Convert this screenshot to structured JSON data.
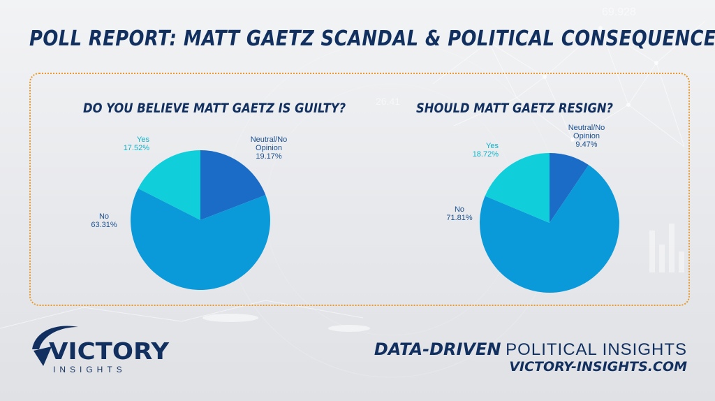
{
  "title": "POLL REPORT: MATT GAETZ SCANDAL & POLITICAL CONSEQUENCES",
  "chart_data": [
    {
      "type": "pie",
      "title": "DO YOU BELIEVE MATT GAETZ IS GUILTY?",
      "slices": [
        {
          "label": "Neutral/No Opinion",
          "label_lines": [
            "Neutral/No",
            "Opinion"
          ],
          "value": 19.17,
          "display": "19.17%",
          "color": "#1a6cc6"
        },
        {
          "label": "No",
          "label_lines": [
            "No"
          ],
          "value": 63.31,
          "display": "63.31%",
          "color": "#0b9ad9"
        },
        {
          "label": "Yes",
          "label_lines": [
            "Yes"
          ],
          "value": 17.52,
          "display": "17.52%",
          "color": "#11cedb"
        }
      ]
    },
    {
      "type": "pie",
      "title": "SHOULD MATT GAETZ RESIGN?",
      "slices": [
        {
          "label": "Neutral/No Opinion",
          "label_lines": [
            "Neutral/No",
            "Opinion"
          ],
          "value": 9.47,
          "display": "9.47%",
          "color": "#1a6cc6"
        },
        {
          "label": "No",
          "label_lines": [
            "No"
          ],
          "value": 71.81,
          "display": "71.81%",
          "color": "#0b9ad9"
        },
        {
          "label": "Yes",
          "label_lines": [
            "Yes"
          ],
          "value": 18.72,
          "display": "18.72%",
          "color": "#11cedb"
        }
      ]
    }
  ],
  "label_colors": {
    "neutral": "#1a4f8f",
    "no": "#1a4f8f",
    "yes": "#0fb0c7"
  },
  "brand": {
    "logo_main": "VICTORY",
    "logo_sub": "INSIGHTS",
    "tagline_strong": "DATA-DRIVEN",
    "tagline_light": "POLITICAL INSIGHTS",
    "url": "VICTORY-INSIGHTS.COM"
  },
  "colors": {
    "navy": "#12305f",
    "accent_border": "#e89a2a"
  },
  "background_text": [
    "69.928",
    "26.41"
  ]
}
